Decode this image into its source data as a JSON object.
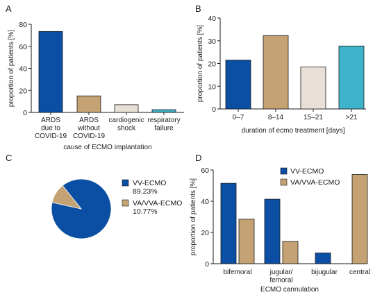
{
  "colors": {
    "blue": "#0a4fa3",
    "tan": "#c4a273",
    "beige": "#e8e0d6",
    "cyan": "#3fb3c9",
    "axis": "#1a1a1a"
  },
  "chart_data": [
    {
      "panel": "A",
      "type": "bar",
      "ylabel": "proportion of patients [%]",
      "xlabel": "cause of ECMO implantation",
      "ylim": [
        0,
        80
      ],
      "yticks": [
        0,
        20,
        40,
        60,
        80
      ],
      "categories": [
        [
          "ARDS",
          "due to",
          "COVID-19"
        ],
        [
          "ARDS",
          "without",
          "COVID-19"
        ],
        [
          "cardiogenic",
          "shock"
        ],
        [
          "respiratory",
          "failure"
        ]
      ],
      "values": [
        73.5,
        15,
        7,
        2.5
      ],
      "colors": [
        "#0a4fa3",
        "#c4a273",
        "#e8e0d6",
        "#3fb3c9"
      ]
    },
    {
      "panel": "B",
      "type": "bar",
      "ylabel": "proportion of patients [%]",
      "xlabel": "duration of ecmo treatment [days]",
      "ylim": [
        0,
        40
      ],
      "yticks": [
        0,
        10,
        20,
        30,
        40
      ],
      "categories": [
        "0–7",
        "8–14",
        "15–21",
        ">21"
      ],
      "values": [
        21.5,
        32.3,
        18.5,
        27.7
      ],
      "colors": [
        "#0a4fa3",
        "#c4a273",
        "#e8e0d6",
        "#3fb3c9"
      ]
    },
    {
      "panel": "C",
      "type": "pie",
      "slices": [
        {
          "name": "VV-ECMO",
          "pct_label": "89.23%",
          "value": 89.23,
          "color": "#0a4fa3"
        },
        {
          "name": "VA/VVA-ECMO",
          "pct_label": "10.77%",
          "value": 10.77,
          "color": "#c4a273"
        }
      ]
    },
    {
      "panel": "D",
      "type": "bar",
      "ylabel": "proportion of patients [%]",
      "xlabel": "ECMO cannulation",
      "ylim": [
        0,
        60
      ],
      "yticks": [
        0,
        20,
        40,
        60
      ],
      "legend_position": "top-right",
      "categories": [
        [
          "bifemoral"
        ],
        [
          "jugular/",
          "femoral"
        ],
        [
          "bijugular"
        ],
        [
          "central"
        ]
      ],
      "series": [
        {
          "name": "VV-ECMO",
          "color": "#0a4fa3",
          "values": [
            51.5,
            41.3,
            6.9,
            null
          ]
        },
        {
          "name": "VA/VVA-ECMO",
          "color": "#c4a273",
          "values": [
            28.5,
            14.3,
            null,
            57.1
          ]
        }
      ]
    }
  ],
  "panel_labels": [
    "A",
    "B",
    "C",
    "D"
  ]
}
